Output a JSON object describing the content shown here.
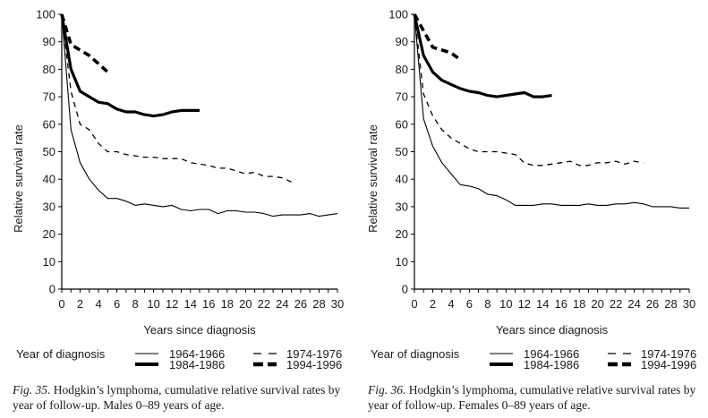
{
  "chart_data": [
    {
      "type": "line",
      "figure_label": "Fig. 35.",
      "caption": "Hodgkin’s lymphoma, cumulative relative survival rates by year of follow-up. Males 0–89 years of age.",
      "title": "",
      "xlabel": "Years since diagnosis",
      "ylabel": "Relative survival rate",
      "xlim": [
        0,
        30
      ],
      "ylim": [
        0,
        100
      ],
      "xticks": [
        0,
        2,
        4,
        6,
        8,
        10,
        12,
        14,
        16,
        18,
        20,
        22,
        24,
        26,
        28,
        30
      ],
      "yticks": [
        0,
        10,
        20,
        30,
        40,
        50,
        60,
        70,
        80,
        90,
        100
      ],
      "grid": false,
      "legend_title": "Year of diagnosis",
      "legend_position": "bottom",
      "series": [
        {
          "name": "1964-1966",
          "style": "thin-solid",
          "x": [
            0,
            1,
            2,
            3,
            4,
            5,
            6,
            7,
            8,
            9,
            10,
            11,
            12,
            13,
            14,
            15,
            16,
            17,
            18,
            19,
            20,
            21,
            22,
            23,
            24,
            25,
            26,
            27,
            28,
            29,
            30
          ],
          "values": [
            100,
            58,
            46,
            40,
            36,
            33,
            33,
            32,
            30.5,
            31,
            30.5,
            30,
            30.5,
            29,
            28.5,
            29,
            29,
            27.5,
            28.5,
            28.5,
            28,
            28,
            27.5,
            26.5,
            27,
            27,
            27,
            27.5,
            26.5,
            27,
            27.5
          ]
        },
        {
          "name": "1974-1976",
          "style": "thin-dashed",
          "x": [
            0,
            1,
            2,
            3,
            4,
            5,
            6,
            7,
            8,
            9,
            10,
            11,
            12,
            13,
            14,
            15,
            16,
            17,
            18,
            19,
            20,
            21,
            22,
            23,
            24,
            25
          ],
          "values": [
            100,
            72,
            60,
            58,
            53,
            50,
            50,
            49,
            48.5,
            48,
            48,
            47.5,
            47.5,
            47.5,
            46,
            45.5,
            45,
            44,
            44,
            43,
            42,
            42.5,
            41,
            41,
            40.5,
            39
          ]
        },
        {
          "name": "1984-1986",
          "style": "thick-solid",
          "x": [
            0,
            1,
            2,
            3,
            4,
            5,
            6,
            7,
            8,
            9,
            10,
            11,
            12,
            13,
            14,
            15
          ],
          "values": [
            100,
            80,
            72,
            70,
            68,
            67.5,
            65.5,
            64.5,
            64.5,
            63.5,
            63,
            63.5,
            64.5,
            65,
            65,
            65
          ]
        },
        {
          "name": "1994-1996",
          "style": "thick-dashed",
          "x": [
            0,
            1,
            2,
            3,
            4,
            5
          ],
          "values": [
            100,
            89,
            87,
            85,
            82,
            79
          ]
        }
      ]
    },
    {
      "type": "line",
      "figure_label": "Fig. 36.",
      "caption": "Hodgkin’s lymphoma, cumulative relative survival rates by year of follow-up. Females 0–89 years of age.",
      "title": "",
      "xlabel": "Years since diagnosis",
      "ylabel": "Relative survival rate",
      "xlim": [
        0,
        30
      ],
      "ylim": [
        0,
        100
      ],
      "xticks": [
        0,
        2,
        4,
        6,
        8,
        10,
        12,
        14,
        16,
        18,
        20,
        22,
        24,
        26,
        28,
        30
      ],
      "yticks": [
        0,
        10,
        20,
        30,
        40,
        50,
        60,
        70,
        80,
        90,
        100
      ],
      "grid": false,
      "legend_title": "Year of diagnosis",
      "legend_position": "bottom",
      "series": [
        {
          "name": "1964-1966",
          "style": "thin-solid",
          "x": [
            0,
            1,
            2,
            3,
            4,
            5,
            6,
            7,
            8,
            9,
            10,
            11,
            12,
            13,
            14,
            15,
            16,
            17,
            18,
            19,
            20,
            21,
            22,
            23,
            24,
            25,
            26,
            27,
            28,
            29,
            30
          ],
          "values": [
            100,
            62,
            52,
            46,
            42,
            38,
            37.5,
            36.5,
            34.5,
            34,
            32.5,
            30.5,
            30.5,
            30.5,
            31,
            31,
            30.5,
            30.5,
            30.5,
            31,
            30.5,
            30.5,
            31,
            31,
            31.5,
            31,
            30,
            30,
            30,
            29.5,
            29.5
          ]
        },
        {
          "name": "1974-1976",
          "style": "thin-dashed",
          "x": [
            0,
            1,
            2,
            3,
            4,
            5,
            6,
            7,
            8,
            9,
            10,
            11,
            12,
            13,
            14,
            15,
            16,
            17,
            18,
            19,
            20,
            21,
            22,
            23,
            24,
            25
          ],
          "values": [
            100,
            71,
            63,
            58,
            55,
            53,
            51,
            50,
            50,
            50,
            49.5,
            49,
            46,
            45,
            45,
            45.5,
            46,
            46.5,
            45,
            45,
            46,
            46,
            46.5,
            45.5,
            46.5,
            46
          ]
        },
        {
          "name": "1984-1986",
          "style": "thick-solid",
          "x": [
            0,
            1,
            2,
            3,
            4,
            5,
            6,
            7,
            8,
            9,
            10,
            11,
            12,
            13,
            14,
            15
          ],
          "values": [
            100,
            85,
            79,
            76,
            74.5,
            73,
            72,
            71.5,
            70.5,
            70,
            70.5,
            71,
            71.5,
            70,
            70,
            70.5
          ]
        },
        {
          "name": "1994-1996",
          "style": "thick-dashed",
          "x": [
            0,
            1,
            2,
            3,
            4,
            5
          ],
          "values": [
            100,
            94,
            88,
            87,
            86,
            83.5
          ]
        }
      ]
    }
  ]
}
